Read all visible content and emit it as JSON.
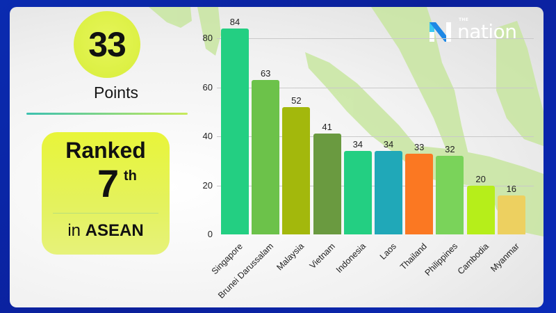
{
  "brand": {
    "logo_prefix": "THE",
    "logo_text": "nation"
  },
  "summary": {
    "score": "33",
    "score_label": "Points",
    "rank_word": "Ranked",
    "rank_number": "7",
    "rank_suffix": "th",
    "rank_prefix": "in",
    "rank_region": "ASEAN"
  },
  "colors": {
    "frame": "#0b1f9a",
    "highlight": "#e2f240",
    "divider_start": "#3cc1b0",
    "divider_end": "#c8ea5a"
  },
  "chart_data": {
    "type": "bar",
    "title": "",
    "xlabel": "",
    "ylabel": "",
    "ylim": [
      0,
      84
    ],
    "yticks": [
      0,
      20,
      40,
      60,
      80
    ],
    "grid": true,
    "legend": "none",
    "categories": [
      "Singapore",
      "Brunei Darussalam",
      "Malaysia",
      "Vietnam",
      "Indonesia",
      "Laos",
      "Thailand",
      "Philippines",
      "Cambodia",
      "Myanmar"
    ],
    "values": [
      84,
      63,
      52,
      41,
      34,
      34,
      33,
      32,
      20,
      16
    ],
    "bar_colors": [
      "#23cf82",
      "#6cc24a",
      "#a3b80c",
      "#6a9a40",
      "#23cf82",
      "#20a8b8",
      "#fb7822",
      "#7ad35a",
      "#b6ee1a",
      "#edd060"
    ]
  }
}
